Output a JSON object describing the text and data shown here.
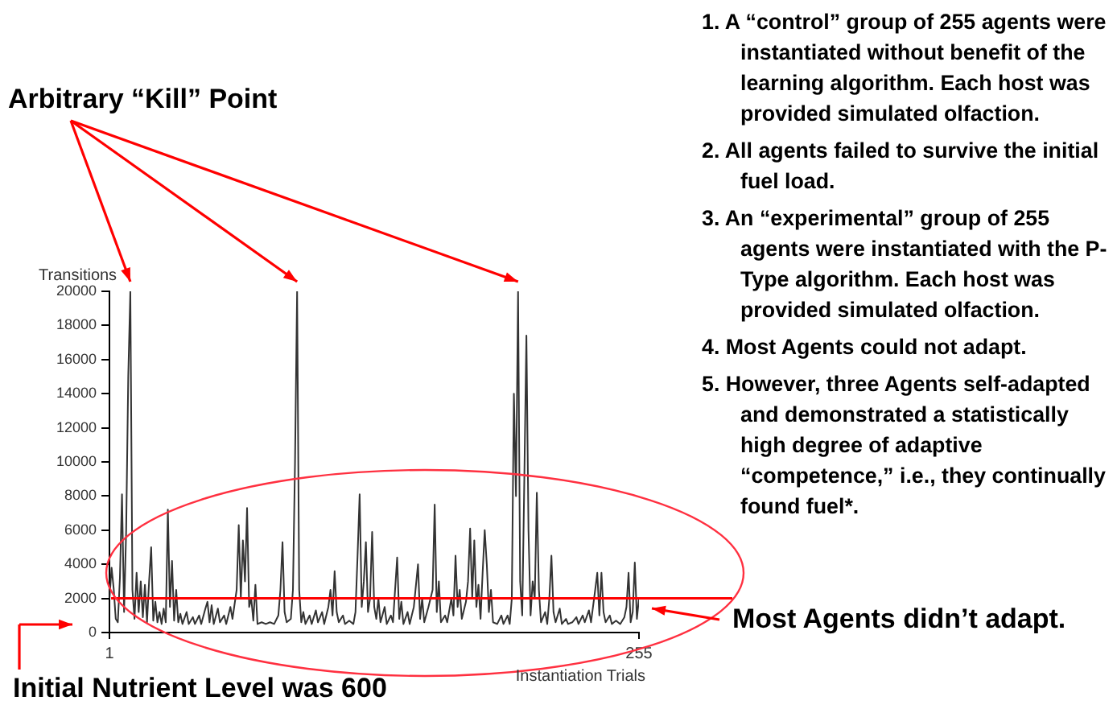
{
  "chart_data": {
    "type": "line",
    "xlabel": "Instantiation Trials",
    "ylabel": "Transitions",
    "xlim": [
      1,
      255
    ],
    "xticks": [
      1,
      255
    ],
    "ylim": [
      0,
      20000
    ],
    "yticks": [
      0,
      2000,
      4000,
      6000,
      8000,
      10000,
      12000,
      14000,
      16000,
      18000,
      20000
    ],
    "marker": "none",
    "line_style": "solid",
    "series": [
      {
        "color": "#333333",
        "x": [
          1,
          2,
          3,
          4,
          5,
          6,
          7,
          8,
          9,
          10,
          11,
          12,
          13,
          14,
          15,
          16,
          17,
          18,
          19,
          20,
          21,
          22,
          23,
          24,
          25,
          26,
          27,
          28,
          29,
          30,
          31,
          32,
          33,
          34,
          35,
          36,
          38,
          39,
          41,
          42,
          44,
          45,
          47,
          48,
          49,
          50,
          51,
          53,
          54,
          56,
          57,
          59,
          60,
          62,
          63,
          64,
          65,
          66,
          67,
          68,
          69,
          70,
          71,
          72,
          74,
          76,
          78,
          80,
          82,
          83,
          84,
          85,
          86,
          88,
          89,
          90,
          91,
          92,
          93,
          94,
          95,
          97,
          98,
          100,
          101,
          103,
          104,
          106,
          107,
          108,
          109,
          110,
          111,
          113,
          114,
          116,
          118,
          119,
          120,
          121,
          122,
          123,
          124,
          125,
          126,
          127,
          128,
          129,
          130,
          131,
          133,
          134,
          136,
          137,
          139,
          140,
          141,
          142,
          144,
          145,
          147,
          149,
          150,
          151,
          152,
          154,
          156,
          157,
          158,
          159,
          160,
          162,
          163,
          165,
          166,
          167,
          168,
          169,
          170,
          172,
          173,
          174,
          175,
          176,
          177,
          178,
          179,
          180,
          181,
          182,
          183,
          184,
          185,
          187,
          189,
          190,
          192,
          193,
          194,
          195,
          196,
          197,
          198,
          199,
          200,
          201,
          202,
          203,
          204,
          205,
          206,
          207,
          208,
          210,
          211,
          212,
          213,
          214,
          215,
          217,
          218,
          220,
          221,
          223,
          225,
          226,
          228,
          229,
          231,
          232,
          234,
          235,
          236,
          237,
          238,
          239,
          241,
          242,
          244,
          246,
          248,
          249,
          250,
          251,
          252,
          253,
          254,
          255
        ],
        "values": [
          2000,
          3800,
          2600,
          800,
          600,
          3200,
          8100,
          1200,
          6000,
          15000,
          20000,
          2500,
          800,
          3500,
          1200,
          3000,
          900,
          2800,
          600,
          3000,
          5000,
          700,
          1800,
          600,
          1200,
          500,
          1400,
          600,
          7200,
          1500,
          4200,
          700,
          2500,
          600,
          1100,
          500,
          1200,
          500,
          900,
          500,
          1000,
          500,
          1400,
          1800,
          600,
          1600,
          500,
          1400,
          600,
          1000,
          500,
          1500,
          800,
          2500,
          6300,
          2000,
          5400,
          3000,
          7300,
          1500,
          2000,
          700,
          2800,
          500,
          600,
          500,
          600,
          500,
          1000,
          2500,
          5300,
          1200,
          600,
          800,
          2500,
          10000,
          20000,
          2500,
          600,
          1200,
          500,
          1000,
          500,
          1300,
          600,
          1200,
          500,
          1500,
          2500,
          1000,
          3600,
          1200,
          600,
          1000,
          500,
          700,
          500,
          1200,
          4500,
          8100,
          1500,
          3000,
          5300,
          1200,
          2000,
          5900,
          1500,
          800,
          2000,
          600,
          1500,
          500,
          1000,
          600,
          4400,
          800,
          1800,
          500,
          1200,
          500,
          1500,
          4000,
          800,
          2000,
          600,
          1500,
          2500,
          7500,
          1200,
          3000,
          600,
          1000,
          600,
          2000,
          1000,
          4500,
          1500,
          2500,
          800,
          1800,
          3000,
          6100,
          2000,
          5400,
          1500,
          2800,
          800,
          3500,
          6000,
          4000,
          1200,
          2500,
          600,
          500,
          1000,
          500,
          1000,
          500,
          2000,
          14000,
          8000,
          20000,
          3000,
          1000,
          9000,
          17400,
          6000,
          1000,
          3000,
          2000,
          8200,
          2500,
          600,
          1200,
          500,
          2000,
          4500,
          1200,
          600,
          1400,
          500,
          800,
          500,
          600,
          900,
          500,
          1000,
          600,
          1300,
          600,
          2500,
          3500,
          1000,
          3500,
          1200,
          600,
          1000,
          500,
          700,
          500,
          900,
          1500,
          3500,
          600,
          1200,
          4100,
          800,
          2000
        ]
      }
    ],
    "ref_lines": [
      {
        "axis": "y",
        "value": 2000,
        "color": "#ff0000"
      }
    ],
    "annotations": [
      "Arbitrary “Kill” Point",
      "Initial Nutrient Level was 600",
      "Most Agents didn’t adapt.",
      "1. A “control” group of 255 agents were instantiated without benefit of the learning algorithm.  Each host was provided simulated olfaction.",
      "2. All agents failed to survive the initial fuel load.",
      "3. An “experimental” group of 255 agents were instantiated with the P-Type algorithm. Each host was provided simulated olfaction.",
      "4. Most Agents could not adapt.",
      "5. However, three Agents self-adapted and demonstrated a statistically high degree of adaptive “competence,” i.e., they continually found fuel*."
    ]
  }
}
